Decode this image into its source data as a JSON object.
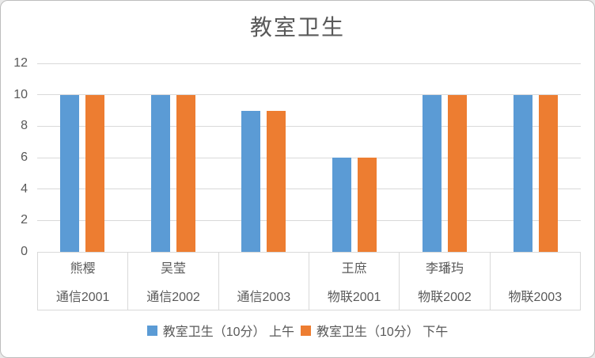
{
  "chart_data": {
    "type": "bar",
    "title": "教室卫生",
    "categories": [
      {
        "name": "熊樱",
        "group": "通信2001"
      },
      {
        "name": "吴莹",
        "group": "通信2002"
      },
      {
        "name": "",
        "group": "通信2003"
      },
      {
        "name": "王庶",
        "group": "物联2001"
      },
      {
        "name": "李璠玙",
        "group": "物联2002"
      },
      {
        "name": "",
        "group": "物联2003"
      }
    ],
    "series": [
      {
        "name": "教室卫生（10分） 上午",
        "color": "#5B9BD5",
        "values": [
          10,
          10,
          9,
          6,
          10,
          10
        ]
      },
      {
        "name": "教室卫生（10分） 下午",
        "color": "#ED7D31",
        "values": [
          10,
          10,
          9,
          6,
          10,
          10
        ]
      }
    ],
    "y_axis": {
      "min": 0,
      "max": 12,
      "step": 2,
      "ticks": [
        0,
        2,
        4,
        6,
        8,
        10,
        12
      ]
    },
    "grid": true,
    "legend_position": "bottom",
    "colors": {
      "gridline": "#d9d9d9",
      "axis_border": "#d9d9d9",
      "text": "#595959",
      "frame_border": "#bdbdbd"
    }
  }
}
